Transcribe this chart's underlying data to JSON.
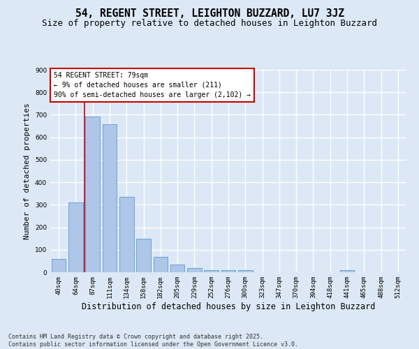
{
  "title": "54, REGENT STREET, LEIGHTON BUZZARD, LU7 3JZ",
  "subtitle": "Size of property relative to detached houses in Leighton Buzzard",
  "xlabel": "Distribution of detached houses by size in Leighton Buzzard",
  "ylabel": "Number of detached properties",
  "categories": [
    "40sqm",
    "64sqm",
    "87sqm",
    "111sqm",
    "134sqm",
    "158sqm",
    "182sqm",
    "205sqm",
    "229sqm",
    "252sqm",
    "276sqm",
    "300sqm",
    "323sqm",
    "347sqm",
    "370sqm",
    "394sqm",
    "418sqm",
    "441sqm",
    "465sqm",
    "488sqm",
    "512sqm"
  ],
  "values": [
    60,
    311,
    693,
    657,
    335,
    150,
    68,
    35,
    20,
    10,
    10,
    8,
    0,
    0,
    0,
    0,
    0,
    10,
    0,
    0,
    0
  ],
  "bar_color": "#aec6e8",
  "bar_edge_color": "#5a9bd5",
  "background_color": "#dce8f5",
  "grid_color": "#ffffff",
  "ylim": [
    0,
    900
  ],
  "annotation_text": "54 REGENT STREET: 79sqm\n← 9% of detached houses are smaller (211)\n90% of semi-detached houses are larger (2,102) →",
  "vline_color": "#cc0000",
  "annotation_box_color": "#ffffff",
  "annotation_box_edge": "#cc0000",
  "footer": "Contains HM Land Registry data © Crown copyright and database right 2025.\nContains public sector information licensed under the Open Government Licence v3.0.",
  "title_fontsize": 10.5,
  "subtitle_fontsize": 9,
  "xlabel_fontsize": 8.5,
  "ylabel_fontsize": 8,
  "tick_fontsize": 6.5,
  "annotation_fontsize": 7,
  "footer_fontsize": 6
}
